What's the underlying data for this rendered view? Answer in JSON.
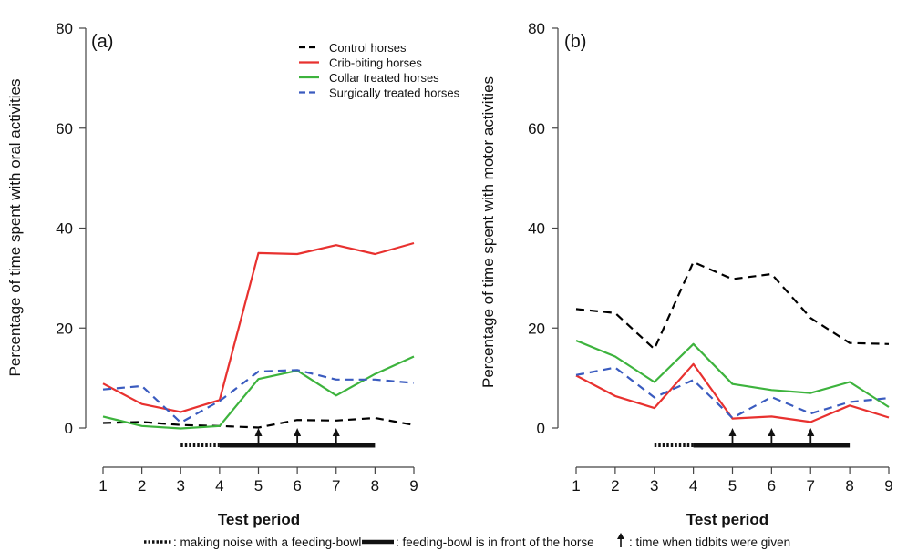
{
  "chart_data": [
    {
      "type": "line",
      "panel_label": "(a)",
      "xlabel": "Test period",
      "ylabel": "Percentage of time spent with oral activities",
      "x": [
        1,
        2,
        3,
        4,
        5,
        6,
        7,
        8,
        9
      ],
      "x_ticks": [
        "1",
        "2",
        "3",
        "4",
        "5",
        "6",
        "7",
        "8",
        "9"
      ],
      "y_ticks": [
        "0",
        "20",
        "40",
        "60",
        "80"
      ],
      "ylim": [
        0,
        80
      ],
      "xlim": [
        1,
        9
      ],
      "grid": false,
      "legend_position": "top-right",
      "series": [
        {
          "name": "Control horses",
          "color": "#000000",
          "dash": "dashed",
          "values": [
            1.0,
            1.2,
            0.6,
            0.4,
            0.1,
            1.6,
            1.5,
            2.0,
            0.6
          ]
        },
        {
          "name": "Crib-biting horses",
          "color": "#e8312f",
          "dash": "solid",
          "values": [
            8.9,
            4.8,
            3.2,
            5.6,
            35.0,
            34.8,
            36.6,
            34.8,
            37.0
          ]
        },
        {
          "name": "Collar treated horses",
          "color": "#3db33d",
          "dash": "solid",
          "values": [
            2.3,
            0.4,
            -0.1,
            0.4,
            9.8,
            11.5,
            6.5,
            10.8,
            14.3
          ]
        },
        {
          "name": "Surgically treated horses",
          "color": "#3a5bbf",
          "dash": "dashed",
          "values": [
            7.7,
            8.4,
            1.1,
            5.4,
            11.3,
            11.6,
            9.7,
            9.7,
            9.0
          ]
        }
      ],
      "noise_period": [
        3,
        4
      ],
      "feeding_period": [
        4,
        8
      ],
      "tidbits_at": [
        5,
        6,
        7
      ]
    },
    {
      "type": "line",
      "panel_label": "(b)",
      "xlabel": "Test period",
      "ylabel": "Percentage of time spent with motor activities",
      "x": [
        1,
        2,
        3,
        4,
        5,
        6,
        7,
        8,
        9
      ],
      "x_ticks": [
        "1",
        "2",
        "3",
        "4",
        "5",
        "6",
        "7",
        "8",
        "9"
      ],
      "y_ticks": [
        "0",
        "20",
        "40",
        "60",
        "80"
      ],
      "ylim": [
        0,
        80
      ],
      "xlim": [
        1,
        9
      ],
      "grid": false,
      "series": [
        {
          "name": "Control horses",
          "color": "#000000",
          "dash": "dashed",
          "values": [
            23.8,
            23.0,
            15.8,
            33.2,
            29.8,
            30.8,
            22.0,
            17.0,
            16.8
          ]
        },
        {
          "name": "Crib-biting horses",
          "color": "#e8312f",
          "dash": "solid",
          "values": [
            10.5,
            6.4,
            4.0,
            12.8,
            1.9,
            2.3,
            1.2,
            4.5,
            2.1
          ]
        },
        {
          "name": "Collar treated horses",
          "color": "#3db33d",
          "dash": "solid",
          "values": [
            17.5,
            14.3,
            9.2,
            16.8,
            8.8,
            7.6,
            7.0,
            9.2,
            4.2
          ]
        },
        {
          "name": "Surgically treated horses",
          "color": "#3a5bbf",
          "dash": "dashed",
          "values": [
            10.6,
            12.1,
            6.1,
            9.6,
            2.0,
            6.2,
            2.9,
            5.2,
            6.0
          ]
        }
      ],
      "noise_period": [
        3,
        4
      ],
      "feeding_period": [
        4,
        8
      ],
      "tidbits_at": [
        5,
        6,
        7
      ]
    }
  ],
  "footer": {
    "noise_text": ": making noise with a feeding-bowl",
    "feeding_text": ": feeding-bowl is in front of the horse",
    "tidbit_text": ": time when tidbits were given"
  }
}
